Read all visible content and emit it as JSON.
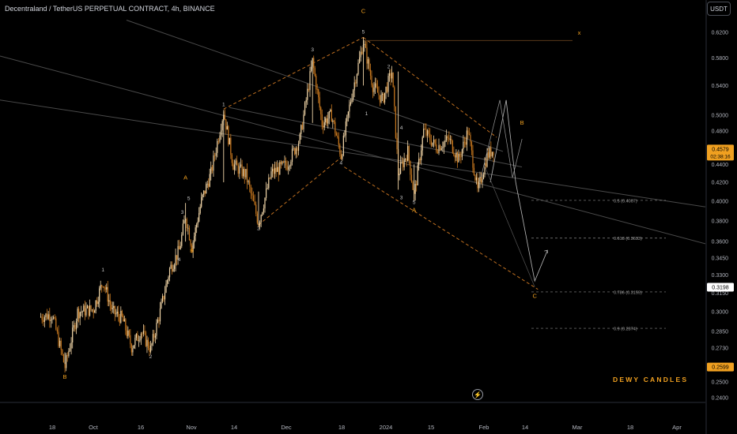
{
  "header": {
    "symbol_title": "Decentraland / TetherUS PERPETUAL CONTRACT, 4h, BINANCE",
    "currency_button": "USDT"
  },
  "watermark": "DEWY CANDLES",
  "colors": {
    "background": "#000000",
    "candle_up": "#f2d6a8",
    "candle_down": "#c8781e",
    "wave_label_orange": "#f0a020",
    "wave_label_white": "#c8c8c8",
    "trendline_gray": "#4a4a4a",
    "channel_dash": "#c07020",
    "fib_dash": "#888888",
    "current_price_tag": "#f0a020",
    "crosshair_price_tag": "#ffffff",
    "low_price_tag": "#f0a020"
  },
  "chart_data": {
    "type": "candlestick",
    "title": "Decentraland / TetherUS PERPETUAL CONTRACT, 4h, BINANCE",
    "y_axis": {
      "scale": "log",
      "ticks": [
        "0.6200",
        "0.5800",
        "0.5400",
        "0.5000",
        "0.4800",
        "0.4400",
        "0.4200",
        "0.4000",
        "0.3800",
        "0.3600",
        "0.3450",
        "0.3300",
        "0.3150",
        "0.3000",
        "0.2850",
        "0.2730",
        "0.2600",
        "0.2500",
        "0.2400"
      ],
      "range": [
        0.235,
        0.66
      ]
    },
    "x_axis": {
      "ticks": [
        "18",
        "Oct",
        "16",
        "Nov",
        "14",
        "Dec",
        "18",
        "2024",
        "15",
        "Feb",
        "14",
        "Mar",
        "18",
        "Apr"
      ]
    },
    "price_tags": [
      {
        "kind": "current",
        "value": "0.4579",
        "countdown": "02:38:16"
      },
      {
        "kind": "crosshair",
        "value": "0.3198"
      },
      {
        "kind": "low",
        "value": "0.2599"
      }
    ],
    "price_path": [
      {
        "t": "Sep 14",
        "p": 0.296
      },
      {
        "t": "Sep 18",
        "p": 0.298
      },
      {
        "t": "Sep 22",
        "p": 0.26
      },
      {
        "t": "Sep 26",
        "p": 0.3
      },
      {
        "t": "Oct 1",
        "p": 0.302
      },
      {
        "t": "Oct 4",
        "p": 0.325
      },
      {
        "t": "Oct 7",
        "p": 0.3
      },
      {
        "t": "Oct 10",
        "p": 0.295
      },
      {
        "t": "Oct 13",
        "p": 0.274
      },
      {
        "t": "Oct 16",
        "p": 0.285
      },
      {
        "t": "Oct 19",
        "p": 0.272
      },
      {
        "t": "Oct 22",
        "p": 0.3
      },
      {
        "t": "Oct 25",
        "p": 0.335
      },
      {
        "t": "Oct 28",
        "p": 0.352
      },
      {
        "t": "Oct 30",
        "p": 0.385
      },
      {
        "t": "Nov 1",
        "p": 0.355
      },
      {
        "t": "Nov 4",
        "p": 0.4
      },
      {
        "t": "Nov 7",
        "p": 0.43
      },
      {
        "t": "Nov 11",
        "p": 0.505
      },
      {
        "t": "Nov 14",
        "p": 0.44
      },
      {
        "t": "Nov 18",
        "p": 0.428
      },
      {
        "t": "Nov 22",
        "p": 0.378
      },
      {
        "t": "Nov 26",
        "p": 0.43
      },
      {
        "t": "Dec 1",
        "p": 0.44
      },
      {
        "t": "Dec 5",
        "p": 0.47
      },
      {
        "t": "Dec 9",
        "p": 0.575
      },
      {
        "t": "Dec 12",
        "p": 0.49
      },
      {
        "t": "Dec 15",
        "p": 0.5
      },
      {
        "t": "Dec 18",
        "p": 0.45
      },
      {
        "t": "Dec 21",
        "p": 0.52
      },
      {
        "t": "Dec 25",
        "p": 0.605
      },
      {
        "t": "Dec 28",
        "p": 0.54
      },
      {
        "t": "Dec 31",
        "p": 0.52
      },
      {
        "t": "Jan 3",
        "p": 0.56
      },
      {
        "t": "Jan 5",
        "p": 0.43
      },
      {
        "t": "Jan 8",
        "p": 0.455
      },
      {
        "t": "Jan 10",
        "p": 0.405
      },
      {
        "t": "Jan 13",
        "p": 0.48
      },
      {
        "t": "Jan 17",
        "p": 0.46
      },
      {
        "t": "Jan 21",
        "p": 0.47
      },
      {
        "t": "Jan 24",
        "p": 0.445
      },
      {
        "t": "Jan 27",
        "p": 0.48
      },
      {
        "t": "Jan 30",
        "p": 0.41
      },
      {
        "t": "Feb 2",
        "p": 0.45
      },
      {
        "t": "Feb 4",
        "p": 0.458
      }
    ],
    "wave_labels": [
      {
        "text": "B",
        "t": "Sep 22",
        "p": 0.252,
        "style": "orange"
      },
      {
        "text": "1",
        "t": "Oct 4",
        "p": 0.333,
        "style": "white"
      },
      {
        "text": "2",
        "t": "Oct 19",
        "p": 0.266,
        "style": "white"
      },
      {
        "text": "3",
        "t": "Oct 29",
        "p": 0.387,
        "style": "white"
      },
      {
        "text": "4",
        "t": "Oct 28",
        "p": 0.342,
        "style": "white"
      },
      {
        "text": "5",
        "t": "Oct 31",
        "p": 0.401,
        "style": "white"
      },
      {
        "text": "A",
        "t": "Oct 30",
        "p": 0.423,
        "style": "orange"
      },
      {
        "text": "B",
        "t": "Nov 1",
        "p": 0.35,
        "style": "orange"
      },
      {
        "text": "1",
        "t": "Nov 11",
        "p": 0.512,
        "style": "white"
      },
      {
        "text": "2",
        "t": "Nov 22",
        "p": 0.371,
        "style": "white"
      },
      {
        "text": "3",
        "t": "Dec 9",
        "p": 0.59,
        "style": "white"
      },
      {
        "text": "4",
        "t": "Dec 18",
        "p": 0.44,
        "style": "white"
      },
      {
        "text": "5",
        "t": "Dec 25",
        "p": 0.618,
        "style": "white"
      },
      {
        "text": "C",
        "t": "Dec 25",
        "p": 0.652,
        "style": "orange"
      },
      {
        "text": "1",
        "t": "Dec 26",
        "p": 0.5,
        "style": "white"
      },
      {
        "text": "2",
        "t": "Jan 2",
        "p": 0.565,
        "style": "white"
      },
      {
        "text": "3",
        "t": "Jan 6",
        "p": 0.402,
        "style": "white"
      },
      {
        "text": "4",
        "t": "Jan 6",
        "p": 0.482,
        "style": "white"
      },
      {
        "text": "5",
        "t": "Jan 10",
        "p": 0.397,
        "style": "white"
      },
      {
        "text": "A",
        "t": "Jan 10",
        "p": 0.389,
        "style": "orange"
      },
      {
        "text": "B",
        "t": "Feb 13",
        "p": 0.488,
        "style": "orange"
      },
      {
        "text": "C",
        "t": "Feb 17",
        "p": 0.311,
        "style": "orange"
      },
      {
        "text": "x",
        "t": "Mar 2",
        "p": 0.616,
        "style": "orange"
      }
    ],
    "fib_levels": [
      {
        "label": "0.5 (0.4007)",
        "value": 0.4007
      },
      {
        "label": "0.618 (0.3633)",
        "value": 0.3633
      },
      {
        "label": "0.786 (0.3159)",
        "value": 0.3159
      },
      {
        "label": "0.9 (0.2874)",
        "value": 0.2874
      }
    ],
    "projection_path": [
      {
        "t": "Feb 3",
        "p": 0.42
      },
      {
        "t": "Feb 8",
        "p": 0.52
      },
      {
        "t": "Feb 11",
        "p": 0.42
      },
      {
        "t": "Feb 17",
        "p": 0.325
      },
      {
        "t": "Feb 21",
        "p": 0.352
      }
    ],
    "grid": false,
    "legend": "none"
  }
}
